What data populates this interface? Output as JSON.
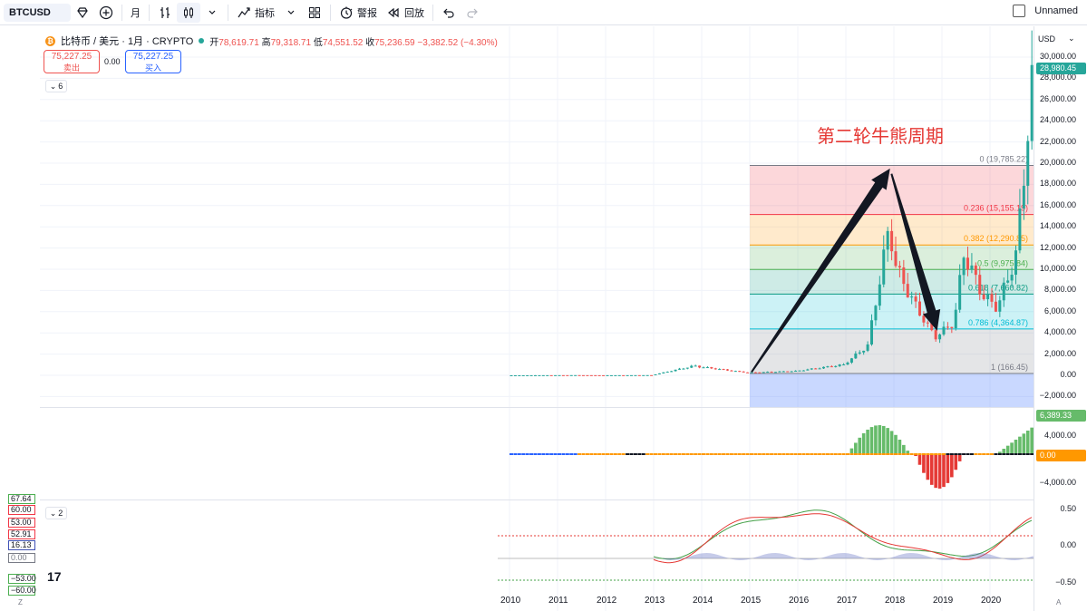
{
  "toolbar": {
    "symbol": "BTCUSD",
    "interval": "月",
    "indicators_label": "指标",
    "alert_label": "警报",
    "replay_label": "回放",
    "layout_name": "Unnamed"
  },
  "legend": {
    "title": "比特币 / 美元 · 1月 · CRYPTO",
    "open_label": "开",
    "open": "78,619.71",
    "high_label": "高",
    "high": "79,318.71",
    "low_label": "低",
    "low": "74,551.52",
    "close_label": "收",
    "close": "75,236.59",
    "change": "−3,382.52 (−4.30%)",
    "sell_price": "75,227.25",
    "sell_label": "卖出",
    "spread": "0.00",
    "buy_price": "75,227.25",
    "buy_label": "买入",
    "collapse_main": "6",
    "collapse_osc": "2"
  },
  "annotation": {
    "text": "第二轮牛熊周期",
    "color": "#e53935"
  },
  "fib": {
    "levels": [
      {
        "label": "0 (19,785.22)",
        "price": 19785.22,
        "color": "#787b86"
      },
      {
        "label": "0.236 (15,155.19)",
        "price": 15155.19,
        "color": "#f23645"
      },
      {
        "label": "0.382 (12,290.85)",
        "price": 12290.85,
        "color": "#ff9800"
      },
      {
        "label": "0.5 (9,975.84)",
        "price": 9975.84,
        "color": "#4caf50"
      },
      {
        "label": "0.618 (7,660.82)",
        "price": 7660.82,
        "color": "#089981"
      },
      {
        "label": "0.786 (4,364.87)",
        "price": 4364.87,
        "color": "#00bcd4"
      },
      {
        "label": "1 (166.45)",
        "price": 166.45,
        "color": "#787b86"
      }
    ]
  },
  "price_axis": {
    "currency": "USD",
    "ticks": [
      "30,000.00",
      "28,000.00",
      "26,000.00",
      "24,000.00",
      "22,000.00",
      "20,000.00",
      "18,000.00",
      "16,000.00",
      "14,000.00",
      "12,000.00",
      "10,000.00",
      "8,000.00",
      "6,000.00",
      "4,000.00",
      "2,000.00",
      "0.00",
      "−2,000.00"
    ],
    "last_price_tag": "28,980.45",
    "osc_ticks": [
      "4,000.00",
      "−4,000.00"
    ],
    "osc_tag_top": "6,389.33",
    "osc_tag_zero": "0.00",
    "macd_ticks": [
      "0.50",
      "0.00",
      "−0.50"
    ]
  },
  "left_tags": [
    {
      "text": "67.64",
      "color": "#4caf50"
    },
    {
      "text": "60.00",
      "color": "#f23645"
    },
    {
      "text": "53.00",
      "color": "#f23645"
    },
    {
      "text": "52.91",
      "color": "#f23645"
    },
    {
      "text": "16.13",
      "color": "#3f51b5"
    },
    {
      "text": "0.00",
      "color": "#787b86"
    },
    {
      "text": "−53.00",
      "color": "#4caf50"
    },
    {
      "text": "−60.00",
      "color": "#4caf50"
    }
  ],
  "years": [
    "2010",
    "2011",
    "2012",
    "2013",
    "2014",
    "2015",
    "2016",
    "2017",
    "2018",
    "2019",
    "2020"
  ],
  "corner_left": "Z",
  "corner_right": "A",
  "colors": {
    "up": "#26a69a",
    "down": "#ef5350",
    "accent": "#2962ff"
  }
}
